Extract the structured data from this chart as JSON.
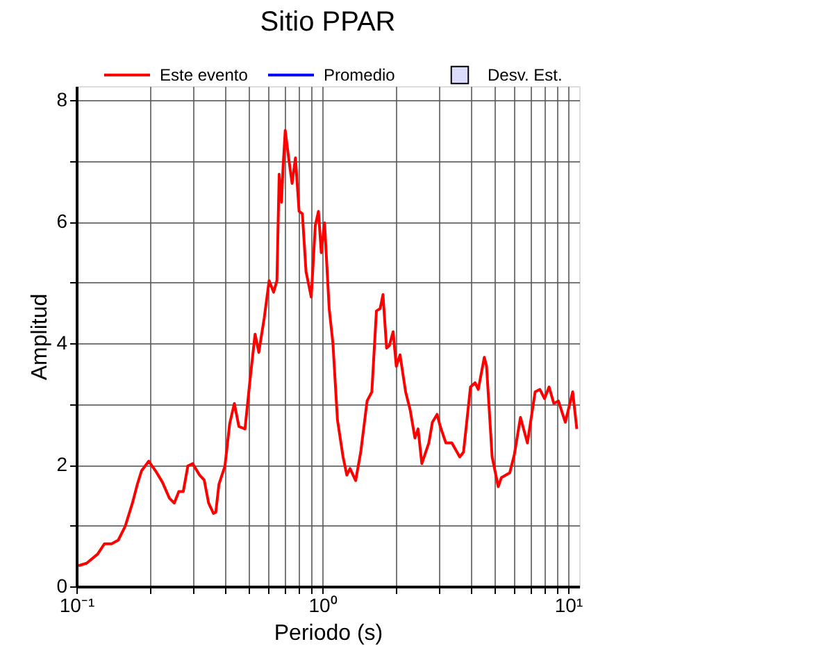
{
  "chart_data": {
    "type": "line",
    "title": "Sitio PPAR",
    "xlabel": "Periodo (s)",
    "ylabel": "Amplitud",
    "log": "x",
    "grid": true,
    "legend": "top",
    "xlim": [
      0.1,
      11.1
    ],
    "ylim": [
      0,
      8.23
    ],
    "xticks": [
      {
        "value": 0.1,
        "label": "10⁻¹"
      },
      {
        "value": 0.2,
        "label": null
      },
      {
        "value": 0.3,
        "label": null
      },
      {
        "value": 0.4,
        "label": null
      },
      {
        "value": 0.5,
        "label": null
      },
      {
        "value": 0.6,
        "label": null
      },
      {
        "value": 0.7,
        "label": null
      },
      {
        "value": 0.8,
        "label": null
      },
      {
        "value": 0.9,
        "label": null
      },
      {
        "value": 1,
        "label": "10⁰"
      },
      {
        "value": 2,
        "label": null
      },
      {
        "value": 3,
        "label": null
      },
      {
        "value": 4,
        "label": null
      },
      {
        "value": 5,
        "label": null
      },
      {
        "value": 6,
        "label": null
      },
      {
        "value": 7,
        "label": null
      },
      {
        "value": 8,
        "label": null
      },
      {
        "value": 9,
        "label": null
      },
      {
        "value": 10,
        "label": "10¹"
      }
    ],
    "yticks": [
      0,
      {
        "value": 1,
        "label": null
      },
      2,
      {
        "value": 3,
        "label": null
      },
      4,
      {
        "value": 5,
        "label": null
      },
      6,
      {
        "value": 7,
        "label": null
      },
      8
    ],
    "series": [
      {
        "name": "Este evento",
        "color": "#ff0000",
        "x": [
          0.102,
          0.11,
          0.122,
          0.13,
          0.139,
          0.148,
          0.158,
          0.169,
          0.177,
          0.184,
          0.197,
          0.21,
          0.224,
          0.239,
          0.25,
          0.261,
          0.272,
          0.284,
          0.297,
          0.317,
          0.331,
          0.345,
          0.361,
          0.369,
          0.38,
          0.402,
          0.42,
          0.439,
          0.458,
          0.485,
          0.507,
          0.533,
          0.552,
          0.581,
          0.608,
          0.634,
          0.654,
          0.668,
          0.683,
          0.692,
          0.707,
          0.732,
          0.754,
          0.778,
          0.805,
          0.83,
          0.859,
          0.902,
          0.937,
          0.965,
          0.991,
          1.022,
          1.067,
          1.105,
          1.153,
          1.215,
          1.259,
          1.297,
          1.367,
          1.434,
          1.522,
          1.591,
          1.661,
          1.72,
          1.766,
          1.827,
          1.875,
          1.942,
          2.001,
          2.072,
          2.183,
          2.279,
          2.382,
          2.454,
          2.541,
          2.713,
          2.805,
          2.932,
          3.021,
          3.183,
          3.366,
          3.625,
          3.755,
          4.008,
          4.184,
          4.311,
          4.563,
          4.66,
          4.909,
          5.197,
          5.355,
          5.79,
          6.045,
          6.4,
          6.831,
          7.346,
          7.679,
          8.017,
          8.369,
          8.746,
          9.131,
          9.744,
          10.44,
          10.85
        ],
        "values": [
          0.34,
          0.38,
          0.53,
          0.7,
          0.7,
          0.76,
          0.99,
          1.37,
          1.68,
          1.9,
          2.06,
          1.9,
          1.71,
          1.45,
          1.37,
          1.56,
          1.56,
          1.98,
          2.02,
          1.83,
          1.75,
          1.37,
          1.2,
          1.22,
          1.68,
          1.98,
          2.67,
          3.01,
          2.63,
          2.59,
          3.35,
          4.15,
          3.85,
          4.42,
          5.03,
          4.84,
          5.03,
          6.78,
          6.32,
          6.86,
          7.5,
          7.01,
          6.63,
          7.05,
          6.17,
          6.13,
          5.18,
          4.76,
          5.94,
          6.17,
          5.49,
          5.98,
          4.57,
          4.0,
          2.74,
          2.13,
          1.83,
          1.94,
          1.74,
          2.21,
          3.05,
          3.2,
          4.53,
          4.57,
          4.8,
          3.92,
          3.96,
          4.19,
          3.62,
          3.81,
          3.2,
          2.9,
          2.44,
          2.59,
          2.02,
          2.36,
          2.7,
          2.83,
          2.63,
          2.36,
          2.36,
          2.13,
          2.21,
          3.28,
          3.35,
          3.24,
          3.77,
          3.62,
          2.13,
          1.64,
          1.79,
          1.87,
          2.17,
          2.78,
          2.36,
          3.2,
          3.24,
          3.09,
          3.28,
          3.01,
          3.05,
          2.7,
          3.2,
          2.59
        ]
      },
      {
        "name": "Promedio",
        "color": "#0000ff",
        "type": "line"
      },
      {
        "name": "Desv. Est.",
        "color": "#dcdcff",
        "type": "area"
      }
    ]
  }
}
